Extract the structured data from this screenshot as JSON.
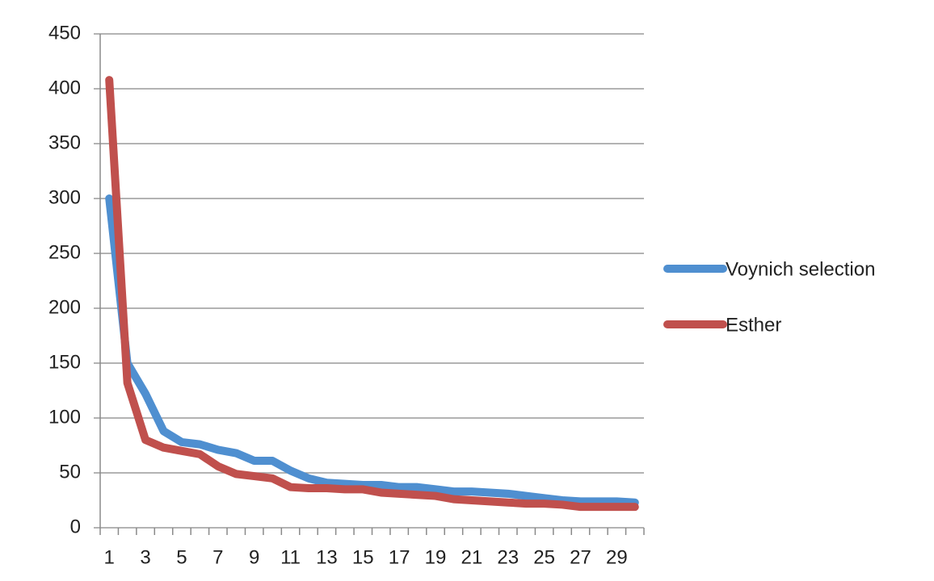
{
  "chart_data": {
    "type": "line",
    "categories": [
      1,
      null,
      3,
      null,
      5,
      null,
      7,
      null,
      9,
      null,
      11,
      null,
      13,
      null,
      15,
      null,
      17,
      null,
      19,
      null,
      21,
      null,
      23,
      null,
      25,
      null,
      27,
      null,
      29,
      null
    ],
    "series": [
      {
        "name": "Voynich selection",
        "color": "#4f8fd0",
        "values": [
          300,
          150,
          122,
          88,
          78,
          76,
          71,
          68,
          61,
          61,
          52,
          45,
          41,
          40,
          39,
          39,
          37,
          37,
          35,
          33,
          33,
          32,
          31,
          29,
          27,
          25,
          24,
          24,
          24,
          23
        ]
      },
      {
        "name": "Esther",
        "color": "#c0504d",
        "values": [
          408,
          132,
          80,
          73,
          70,
          67,
          56,
          49,
          47,
          45,
          37,
          36,
          36,
          35,
          35,
          32,
          31,
          30,
          29,
          26,
          25,
          24,
          23,
          22,
          22,
          21,
          19,
          19,
          19,
          19
        ]
      }
    ],
    "ylim": [
      0,
      450
    ],
    "yticks": [
      0,
      50,
      100,
      150,
      200,
      250,
      300,
      350,
      400,
      450
    ],
    "grid": true,
    "legend": "right"
  }
}
